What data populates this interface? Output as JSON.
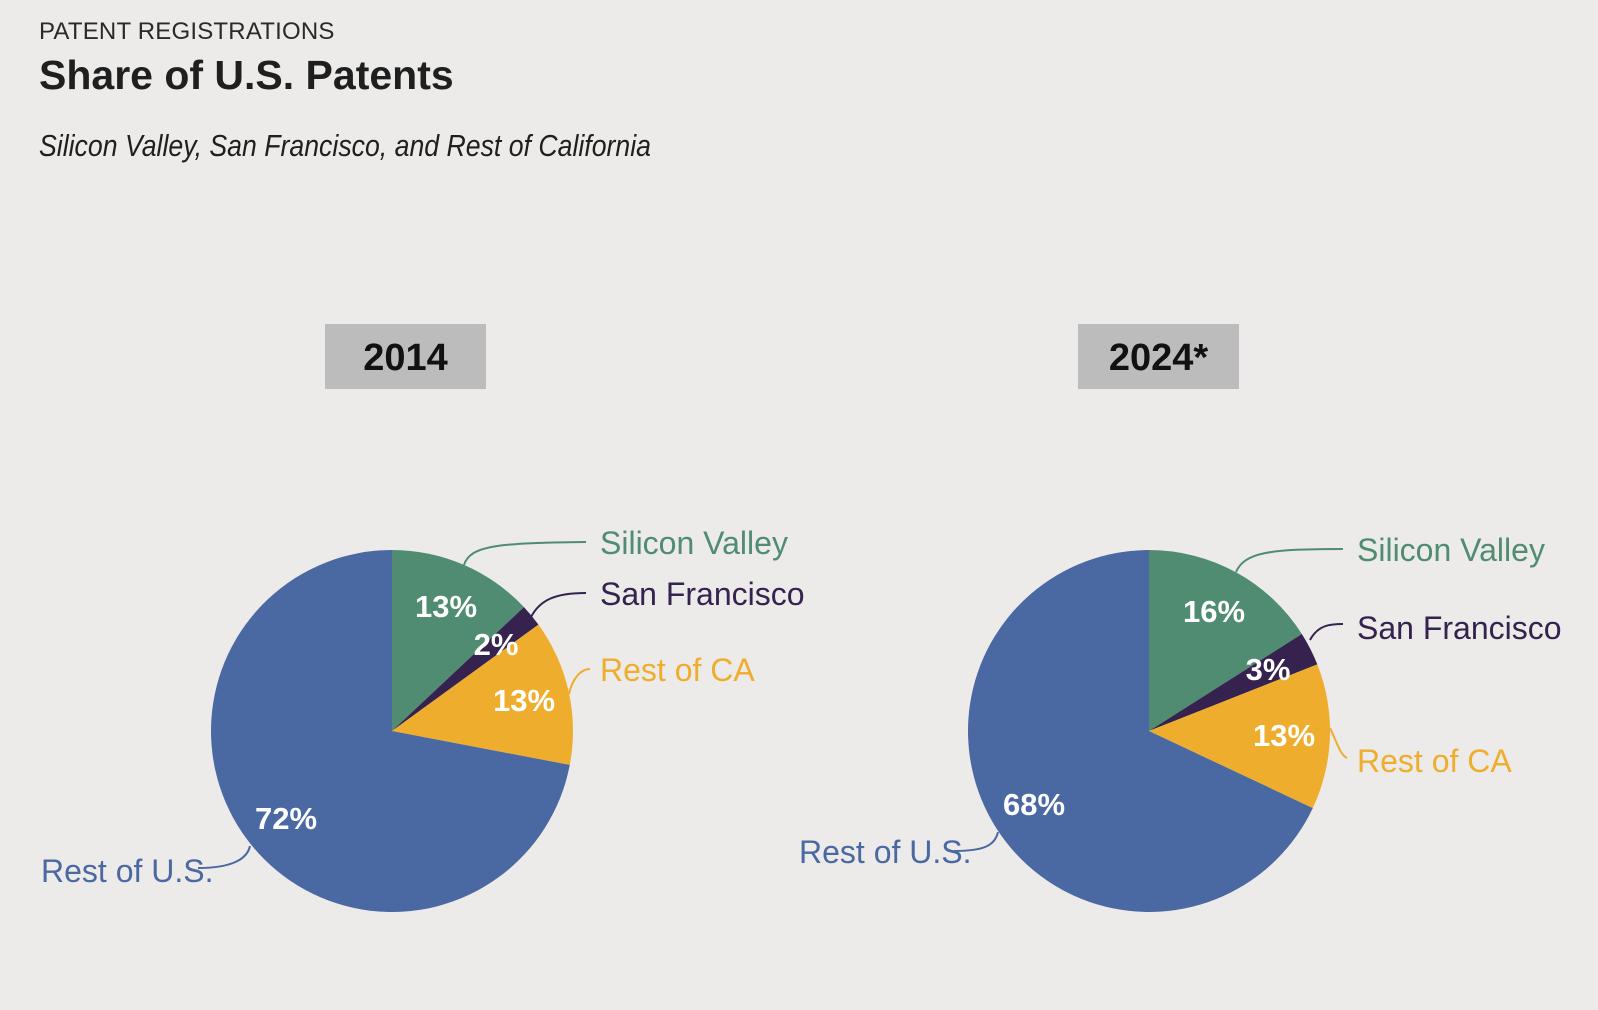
{
  "header": {
    "kicker": "PATENT REGISTRATIONS",
    "title": "Share of U.S. Patents",
    "subtitle": "Silicon Valley, San Francisco, and Rest of California"
  },
  "colors": {
    "silicon_valley": "#4f8c72",
    "san_francisco": "#35224f",
    "rest_of_ca": "#efad2e",
    "rest_of_us": "#4a68a2"
  },
  "chart_data": [
    {
      "type": "pie",
      "title": "2014",
      "categories": [
        "Silicon Valley",
        "San Francisco",
        "Rest of CA",
        "Rest of U.S."
      ],
      "values": [
        13,
        2,
        13,
        72
      ],
      "data_labels": [
        "13%",
        "2%",
        "13%",
        "72%"
      ]
    },
    {
      "type": "pie",
      "title": "2024*",
      "categories": [
        "Silicon Valley",
        "San Francisco",
        "Rest of CA",
        "Rest of U.S."
      ],
      "values": [
        16,
        3,
        13,
        68
      ],
      "data_labels": [
        "16%",
        "3%",
        "13%",
        "68%"
      ]
    }
  ]
}
